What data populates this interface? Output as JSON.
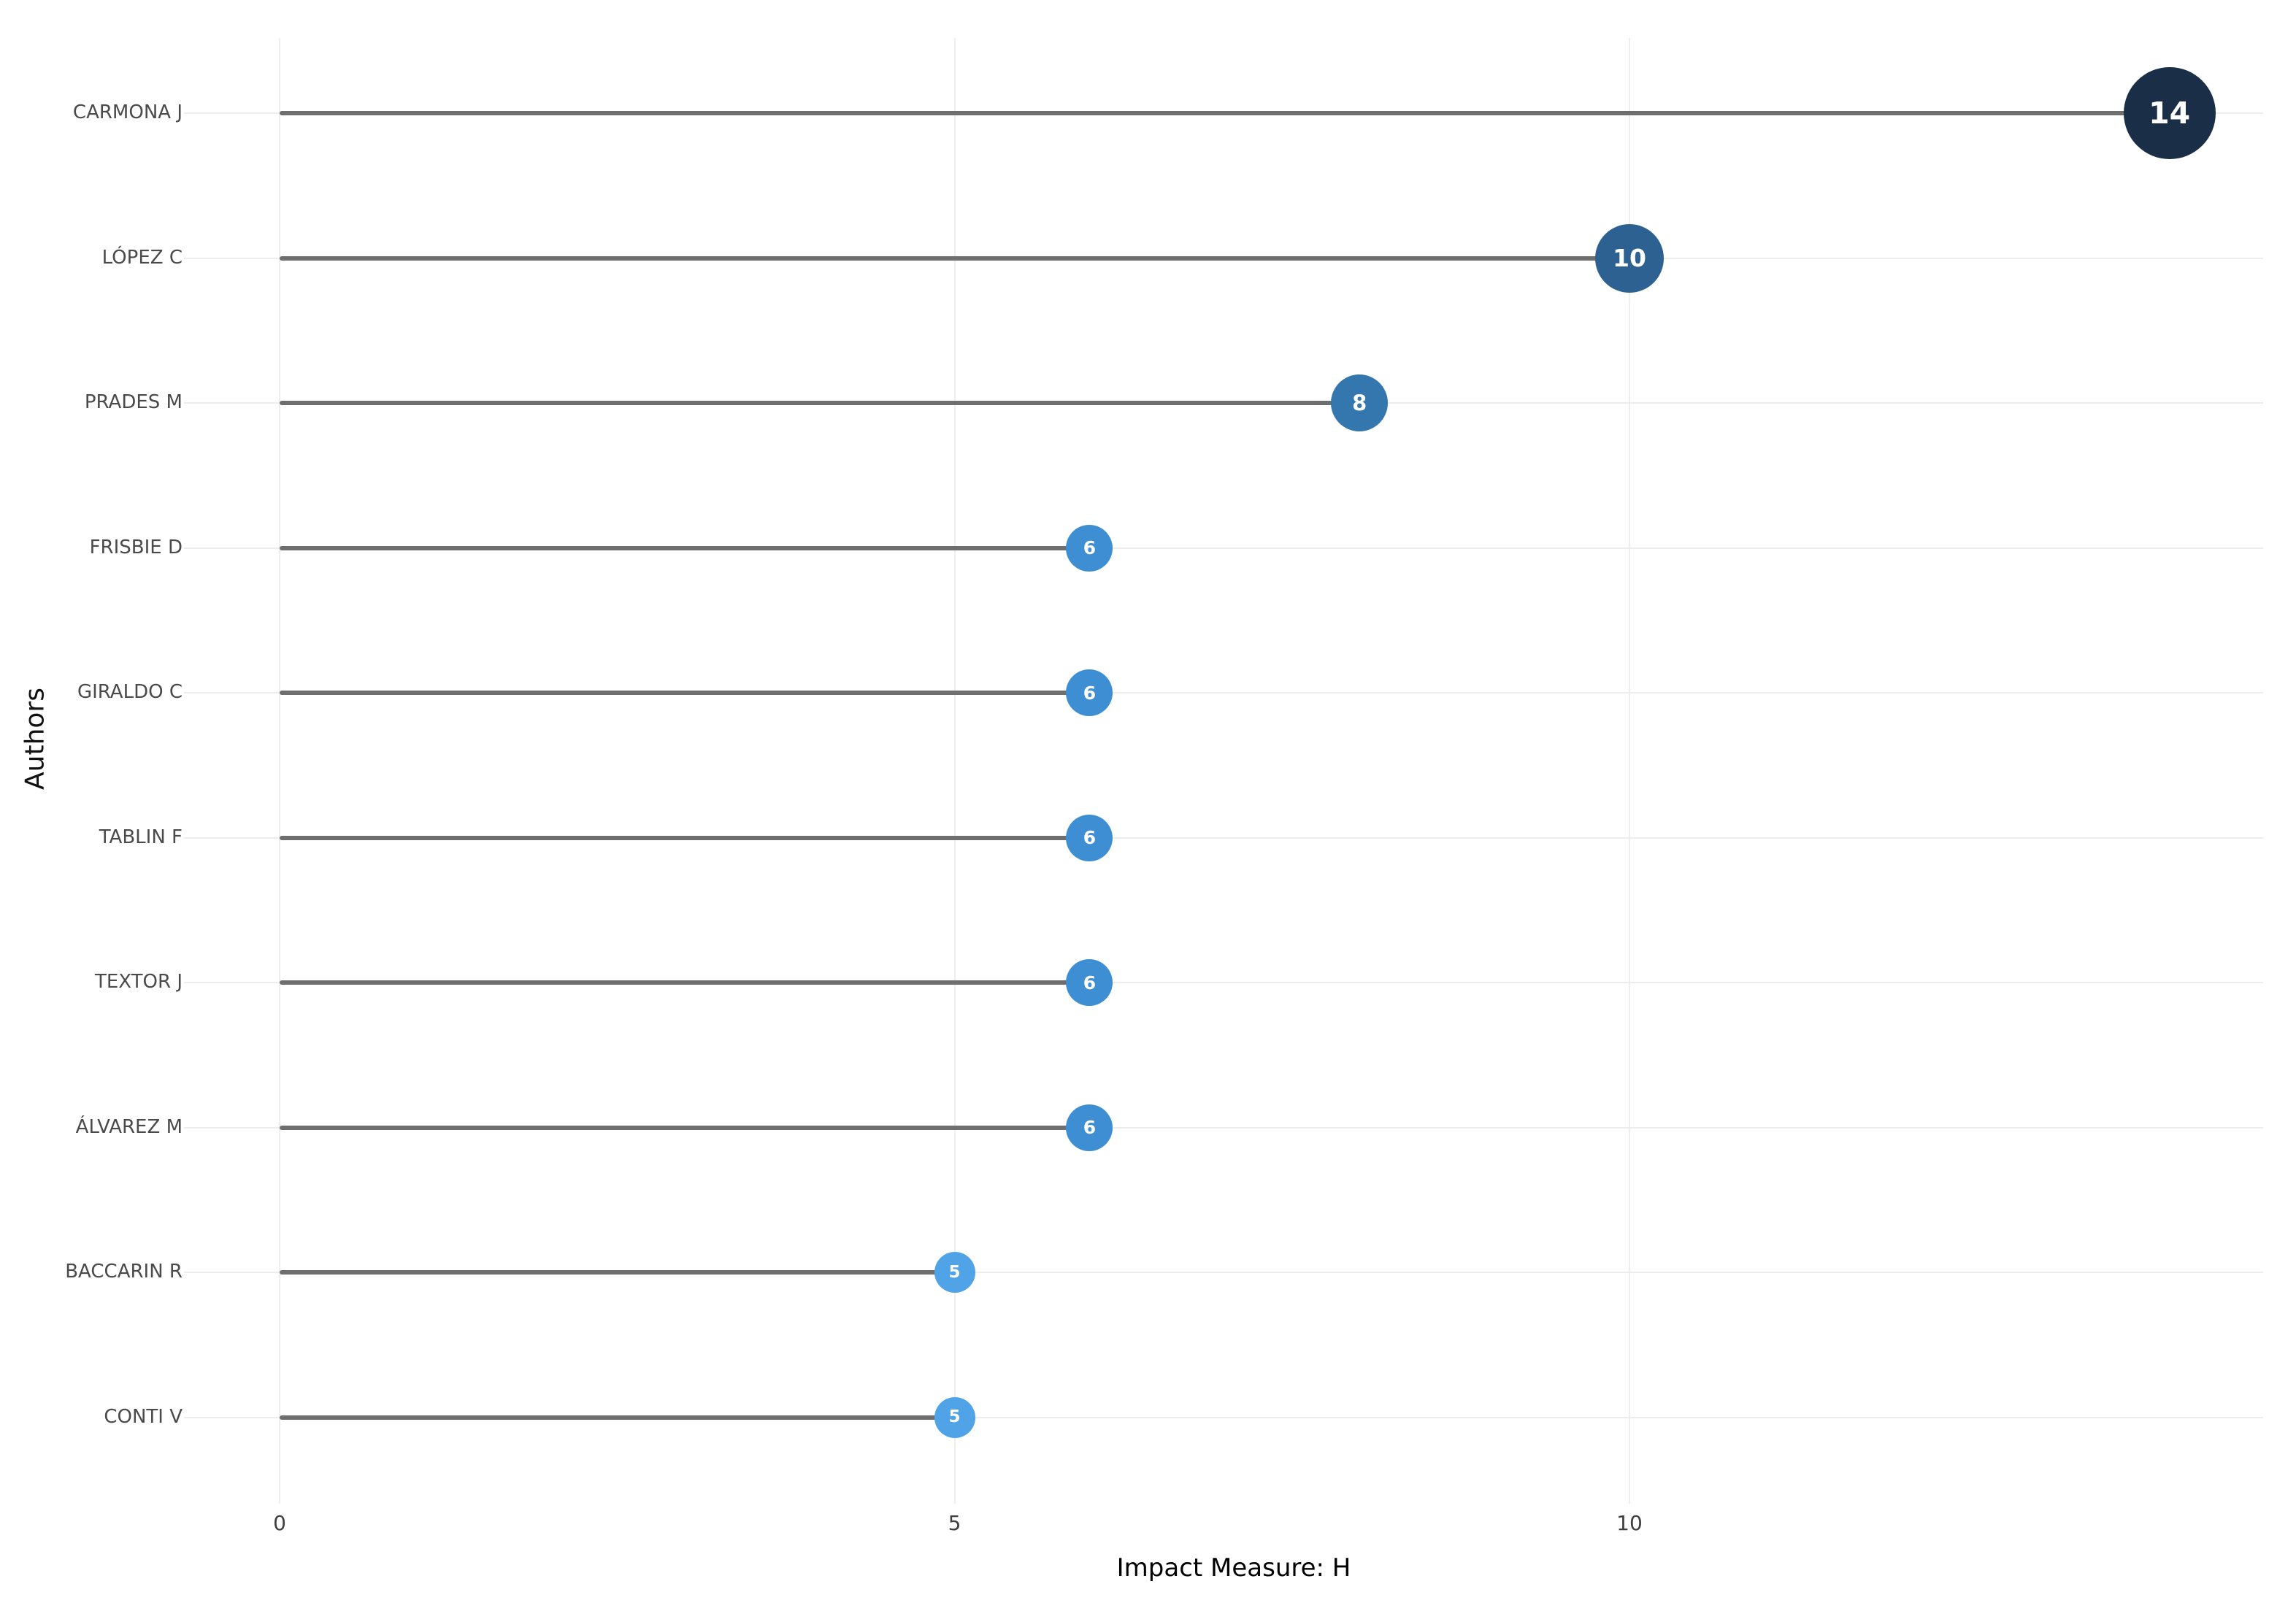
{
  "chart_data": {
    "type": "lollipop",
    "orientation": "horizontal",
    "title": "",
    "xlabel": "Impact Measure: H",
    "ylabel": "Authors",
    "x_ticks": [
      "0",
      "5",
      "10"
    ],
    "x_tick_values": [
      0,
      5,
      10
    ],
    "xlim": [
      0,
      14.7
    ],
    "grid": true,
    "legend": "none",
    "categories": [
      "CARMONA J",
      "LÓPEZ C",
      "PRADES M",
      "FRISBIE D",
      "GIRALDO C",
      "TABLIN F",
      "TEXTOR J",
      "ÁLVAREZ M",
      "BACCARIN R",
      "CONTI V"
    ],
    "values": [
      14,
      10,
      8,
      6,
      6,
      6,
      6,
      6,
      5,
      5
    ],
    "points": [
      {
        "author": "CARMONA J",
        "value": 14,
        "label": "14",
        "color": "#1b2e48",
        "radius": 63
      },
      {
        "author": "LÓPEZ C",
        "value": 10,
        "label": "10",
        "color": "#2c6191",
        "radius": 47
      },
      {
        "author": "PRADES M",
        "value": 8,
        "label": "8",
        "color": "#3377ae",
        "radius": 39
      },
      {
        "author": "FRISBIE D",
        "value": 6,
        "label": "6",
        "color": "#3e8ed3",
        "radius": 32
      },
      {
        "author": "GIRALDO C",
        "value": 6,
        "label": "6",
        "color": "#3e8ed3",
        "radius": 32
      },
      {
        "author": "TABLIN F",
        "value": 6,
        "label": "6",
        "color": "#3e8ed3",
        "radius": 32
      },
      {
        "author": "TEXTOR J",
        "value": 6,
        "label": "6",
        "color": "#3e8ed3",
        "radius": 32
      },
      {
        "author": "ÁLVAREZ M",
        "value": 6,
        "label": "6",
        "color": "#3e8ed3",
        "radius": 32
      },
      {
        "author": "BACCARIN R",
        "value": 5,
        "label": "5",
        "color": "#4fa3e6",
        "radius": 28
      },
      {
        "author": "CONTI V",
        "value": 5,
        "label": "5",
        "color": "#4fa3e6",
        "radius": 28
      }
    ],
    "colors": {
      "stem": "#6e6e6e",
      "grid_line": "#eeeeee",
      "row_line": "#ededed",
      "marker_text": "#ffffff",
      "author_label_text": "#4a4a4a",
      "tick_text": "#3f3f3f",
      "axis_title_text": "#000000"
    }
  }
}
